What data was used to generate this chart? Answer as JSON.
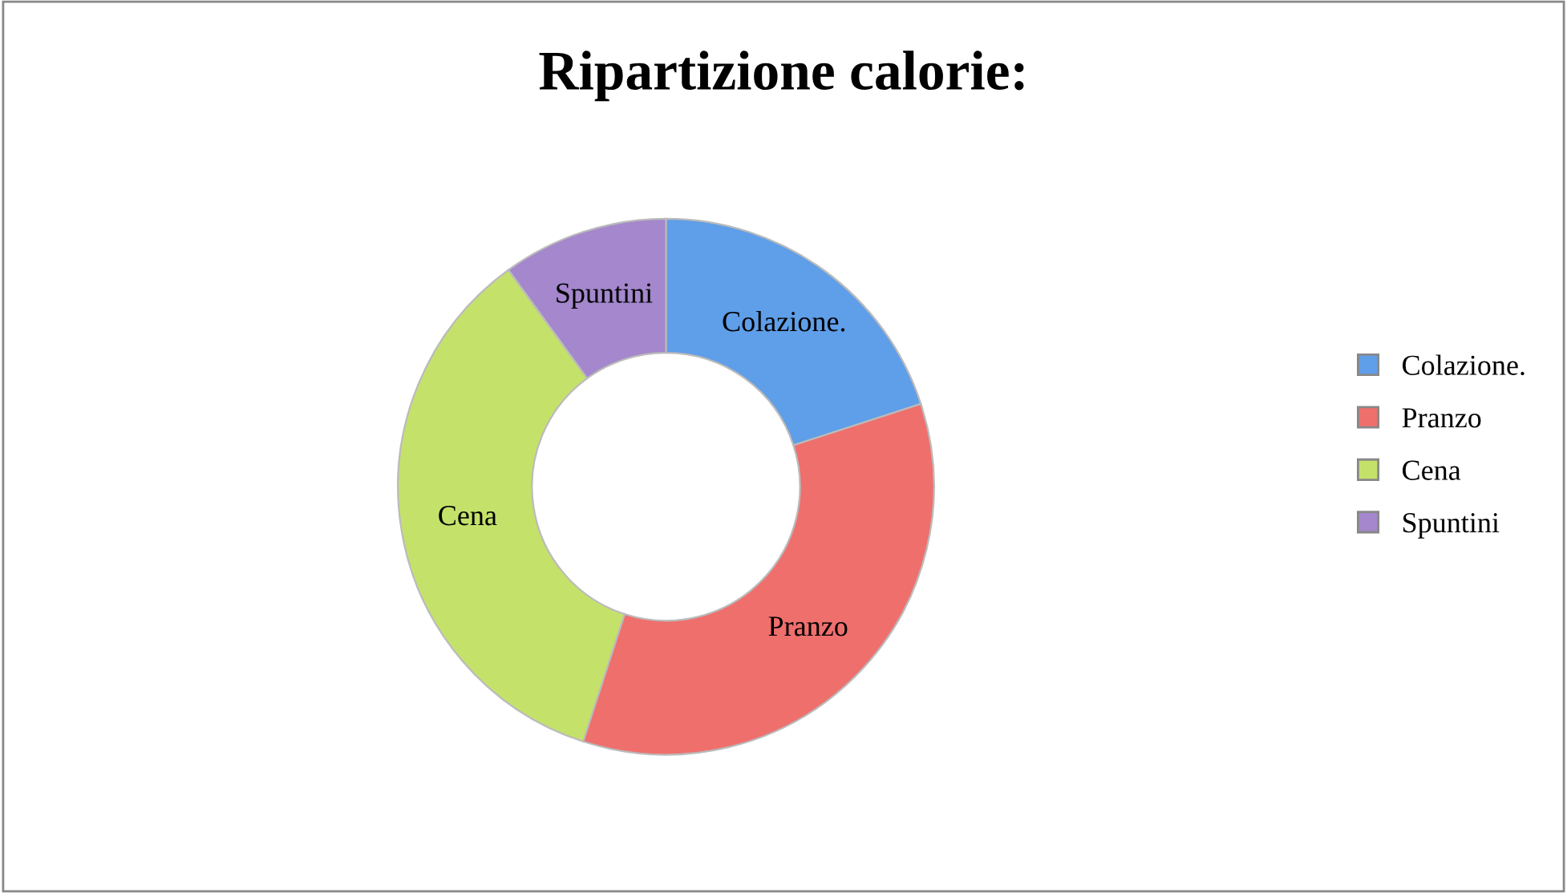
{
  "chart_data": {
    "type": "donut",
    "title": "Ripartizione calorie:",
    "categories": [
      "Colazione.",
      "Pranzo",
      "Cena",
      "Spuntini"
    ],
    "values": [
      20,
      35,
      35,
      10
    ],
    "colors": [
      "#5f9ee8",
      "#ef6f6c",
      "#c4e26a",
      "#a487cc"
    ],
    "legend": "right"
  }
}
